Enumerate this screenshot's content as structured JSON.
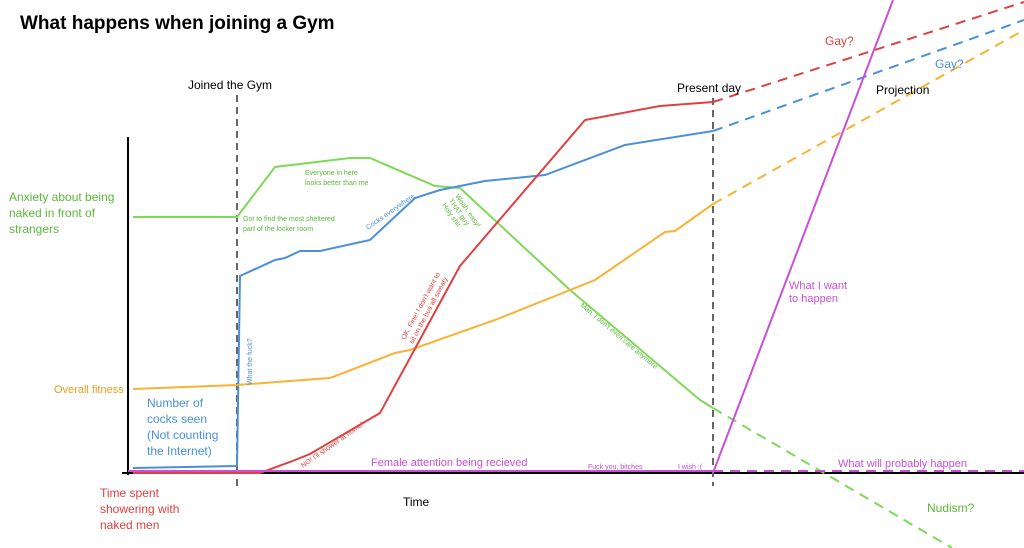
{
  "title": "What happens when joining a Gym",
  "markers": {
    "joined": "Joined the Gym",
    "present": "Present day",
    "projection": "Projection",
    "time": "Time"
  },
  "series_labels": {
    "anxiety": [
      "Anxiety about being",
      "naked in front of",
      "strangers"
    ],
    "fitness": "Overall fitness",
    "cocks": [
      "Number of",
      "cocks seen",
      "(Not counting",
      "the Internet)"
    ],
    "showering": [
      "Time spent",
      "showering with",
      "naked men"
    ],
    "female": "Female attention being recieved"
  },
  "annotations": {
    "sheltered": [
      "Got to find the most sheltered",
      "part of the locker room"
    ],
    "better": [
      "Everyone in here",
      "looks better than me"
    ],
    "everywhere": "Cocks everywhere",
    "woah": [
      "Woah, easy!",
      "THAT guy.",
      "Holy shit"
    ],
    "wtf": "What the fuck?",
    "bus": [
      "OK. Fine! I don't want to",
      "sit on the bus all sweaty"
    ],
    "home": "NO! I'll shower at home!",
    "care": "Man, I don't even care anymore",
    "bitches": "Fuck you, bitches",
    "wish": "I wish :(",
    "want": [
      "What I want",
      "to happen"
    ],
    "probably": "What will probably happen",
    "gay_red": "Gay?",
    "gay_blue": "Gay?",
    "nudism": "Nudism?"
  }
}
